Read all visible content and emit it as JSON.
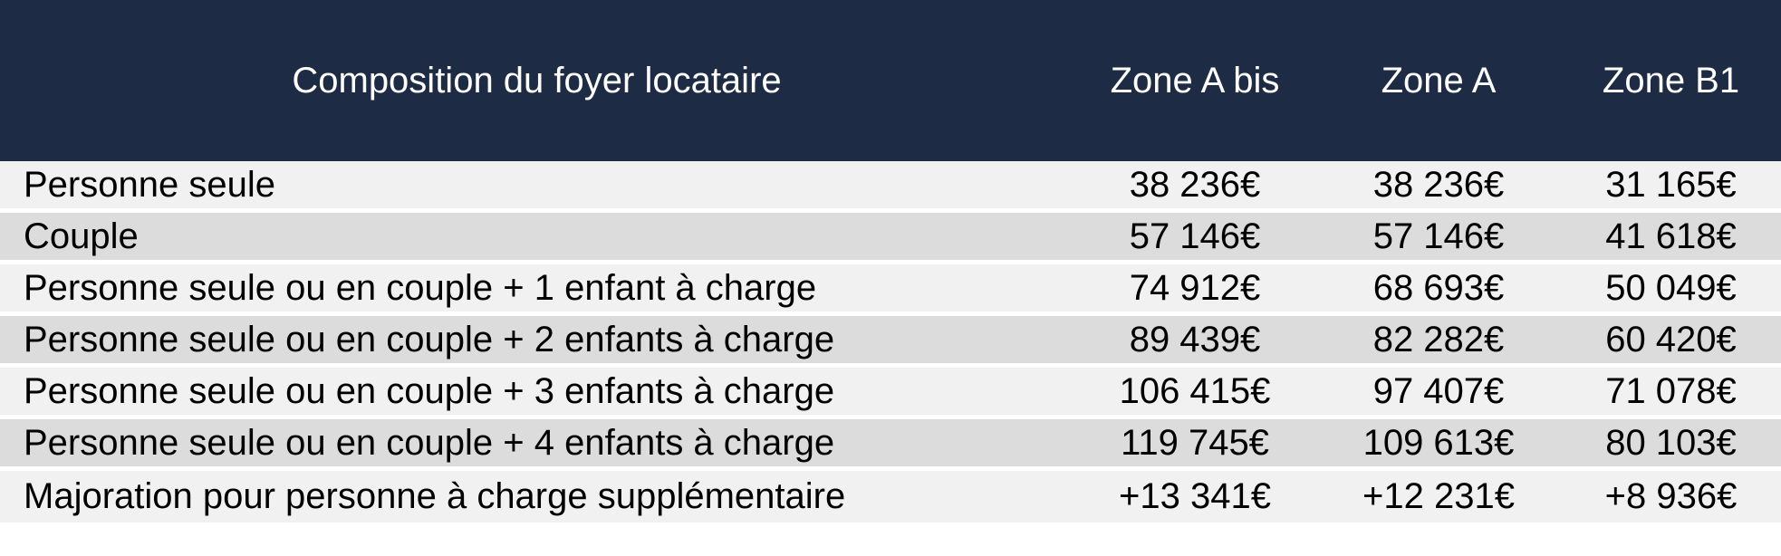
{
  "table": {
    "header": {
      "col_label": "Composition du foyer locataire",
      "columns": [
        "Zone A bis",
        "Zone A",
        "Zone B1"
      ]
    },
    "rows": [
      {
        "label": "Personne seule",
        "values": [
          "38 236€",
          "38 236€",
          "31 165€"
        ]
      },
      {
        "label": "Couple",
        "values": [
          "57 146€",
          "57 146€",
          "41 618€"
        ]
      },
      {
        "label": "Personne seule ou en couple + 1 enfant à charge",
        "values": [
          "74 912€",
          "68 693€",
          "50 049€"
        ]
      },
      {
        "label": "Personne seule ou en couple + 2 enfants à charge",
        "values": [
          "89 439€",
          "82 282€",
          "60 420€"
        ]
      },
      {
        "label": "Personne seule ou en couple + 3 enfants à charge",
        "values": [
          "106 415€",
          "97 407€",
          "71 078€"
        ]
      },
      {
        "label": "Personne seule ou en couple + 4 enfants à charge",
        "values": [
          "119 745€",
          "109 613€",
          "80 103€"
        ]
      },
      {
        "label": "Majoration pour personne à charge supplémentaire",
        "values": [
          "+13 341€",
          "+12 231€",
          "+8 936€"
        ]
      }
    ],
    "colors": {
      "header_bg": "#1d2b44",
      "header_text": "#ffffff",
      "row_light": "#f1f1f1",
      "row_dark": "#dcdcdc",
      "separator": "#ffffff",
      "body_text": "#000000"
    }
  },
  "chart_data": {
    "type": "table",
    "title": "",
    "columns": [
      "Composition du foyer locataire",
      "Zone A bis",
      "Zone A",
      "Zone B1"
    ],
    "rows": [
      [
        "Personne seule",
        "38 236€",
        "38 236€",
        "31 165€"
      ],
      [
        "Couple",
        "57 146€",
        "57 146€",
        "41 618€"
      ],
      [
        "Personne seule ou en couple + 1 enfant à charge",
        "74 912€",
        "68 693€",
        "50 049€"
      ],
      [
        "Personne seule ou en couple + 2 enfants à charge",
        "89 439€",
        "82 282€",
        "60 420€"
      ],
      [
        "Personne seule ou en couple + 3 enfants à charge",
        "106 415€",
        "97 407€",
        "71 078€"
      ],
      [
        "Personne seule ou en couple + 4 enfants à charge",
        "119 745€",
        "109 613€",
        "80 103€"
      ],
      [
        "Majoration pour personne à charge supplémentaire",
        "+13 341€",
        "+12 231€",
        "+8 936€"
      ]
    ],
    "values_numeric": {
      "zone_a_bis": [
        38236,
        57146,
        74912,
        89439,
        106415,
        119745,
        13341
      ],
      "zone_a": [
        38236,
        57146,
        68693,
        82282,
        97407,
        109613,
        12231
      ],
      "zone_b1": [
        31165,
        41618,
        50049,
        60420,
        71078,
        80103,
        8936
      ]
    },
    "layout": {
      "header_background": "#1d2b44",
      "alternating_row_colors": [
        "#f1f1f1",
        "#dcdcdc"
      ],
      "currency": "EUR"
    }
  }
}
